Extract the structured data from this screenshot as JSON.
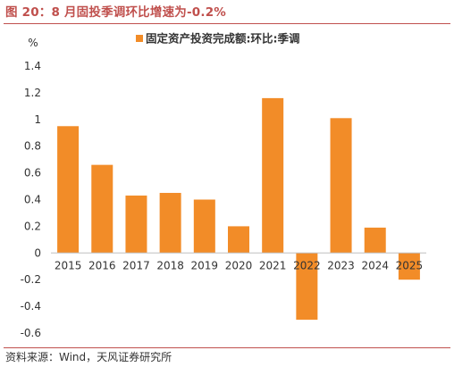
{
  "figure": {
    "title": "图 20：8 月固投季调环比增速为-0.2%",
    "source": "资料来源：Wind，天风证券研究所"
  },
  "colors": {
    "bar": "#f28c28",
    "title": "#c0504d",
    "axis": "#bfbfbf",
    "text": "#333333"
  },
  "chart_data": {
    "type": "bar",
    "categories": [
      "2015",
      "2016",
      "2017",
      "2018",
      "2019",
      "2020",
      "2021",
      "2022",
      "2023",
      "2024",
      "2025"
    ],
    "series": [
      {
        "name": "固定资产投资完成额:环比:季调",
        "values": [
          0.95,
          0.66,
          0.43,
          0.45,
          0.4,
          0.2,
          1.16,
          -0.5,
          1.01,
          0.19,
          -0.2
        ]
      }
    ],
    "ylabel": "%",
    "ylim": [
      -0.6,
      1.4
    ],
    "yticks": [
      "1.4",
      "1.2",
      "1",
      "0.8",
      "0.6",
      "0.4",
      "0.2",
      "0",
      "-0.2",
      "-0.4",
      "-0.6"
    ],
    "legend_position": "top-center",
    "grid": false
  }
}
